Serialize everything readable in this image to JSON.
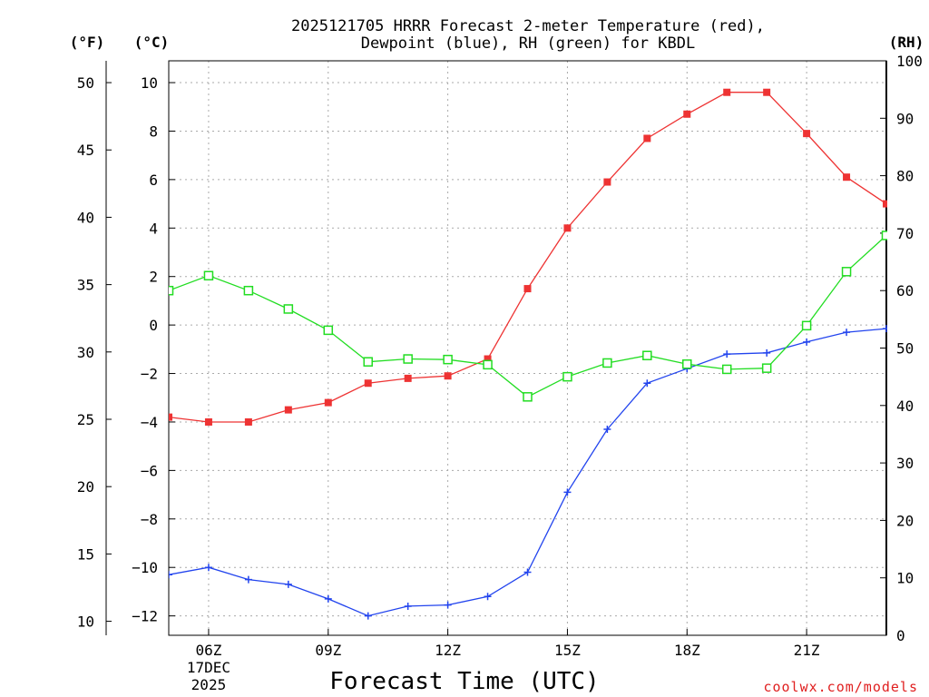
{
  "chart_data": {
    "type": "line",
    "title": "2025121705 HRRR Forecast 2-meter Temperature (red),",
    "subtitle": "Dewpoint (blue), RH (green) for KBDL",
    "xlabel": "Forecast Time (UTC)",
    "credit": "coolwx.com/models",
    "units": {
      "fahrenheit": "(°F)",
      "celsius": "(°C)",
      "rh": "(RH)"
    },
    "x_hours": [
      5,
      6,
      7,
      8,
      9,
      10,
      11,
      12,
      13,
      14,
      15,
      16,
      17,
      18,
      19,
      20,
      21,
      22,
      23
    ],
    "xlim": [
      5,
      23
    ],
    "x_ticks": [
      {
        "hour": 6,
        "label": "06Z",
        "sub1": "17DEC",
        "sub2": "2025"
      },
      {
        "hour": 9,
        "label": "09Z"
      },
      {
        "hour": 12,
        "label": "12Z"
      },
      {
        "hour": 15,
        "label": "15Z"
      },
      {
        "hour": 18,
        "label": "18Z"
      },
      {
        "hour": 21,
        "label": "21Z"
      }
    ],
    "ylim_c": [
      -12.8,
      10.9
    ],
    "y_ticks_c": [
      10,
      8,
      6,
      4,
      2,
      0,
      -2,
      -4,
      -6,
      -8,
      -10,
      -12
    ],
    "y_ticks_f": [
      50,
      45,
      40,
      35,
      30,
      25,
      20,
      15,
      10
    ],
    "ylim_rh": [
      0,
      100
    ],
    "y_ticks_rh": [
      100,
      90,
      80,
      70,
      60,
      50,
      40,
      30,
      20,
      10,
      0
    ],
    "series": [
      {
        "name": "Temperature",
        "color": "#ee3333",
        "marker": "filled-square",
        "axis": "c",
        "values": [
          -3.8,
          -4.0,
          -4.0,
          -3.5,
          -3.2,
          -2.4,
          -2.2,
          -2.1,
          -1.4,
          1.5,
          4.0,
          5.9,
          7.7,
          8.7,
          9.6,
          9.6,
          7.9,
          6.1,
          5.0
        ]
      },
      {
        "name": "Dewpoint",
        "color": "#2244ee",
        "marker": "plus",
        "axis": "c",
        "values": [
          -10.3,
          -10.0,
          -10.5,
          -10.7,
          -11.3,
          -12.0,
          -11.6,
          -11.55,
          -11.2,
          -10.2,
          -6.9,
          -4.3,
          -2.4,
          -1.8,
          -1.2,
          -1.15,
          -0.7,
          -0.3,
          -0.15
        ]
      },
      {
        "name": "RH",
        "color": "#22dd22",
        "marker": "open-square",
        "axis": "rh",
        "values": [
          60,
          62.6,
          60,
          56.8,
          53.1,
          47.6,
          48.1,
          48.0,
          47.1,
          41.5,
          45.0,
          47.4,
          48.7,
          47.2,
          46.3,
          46.5,
          53.9,
          63.3,
          69.6
        ]
      }
    ]
  }
}
